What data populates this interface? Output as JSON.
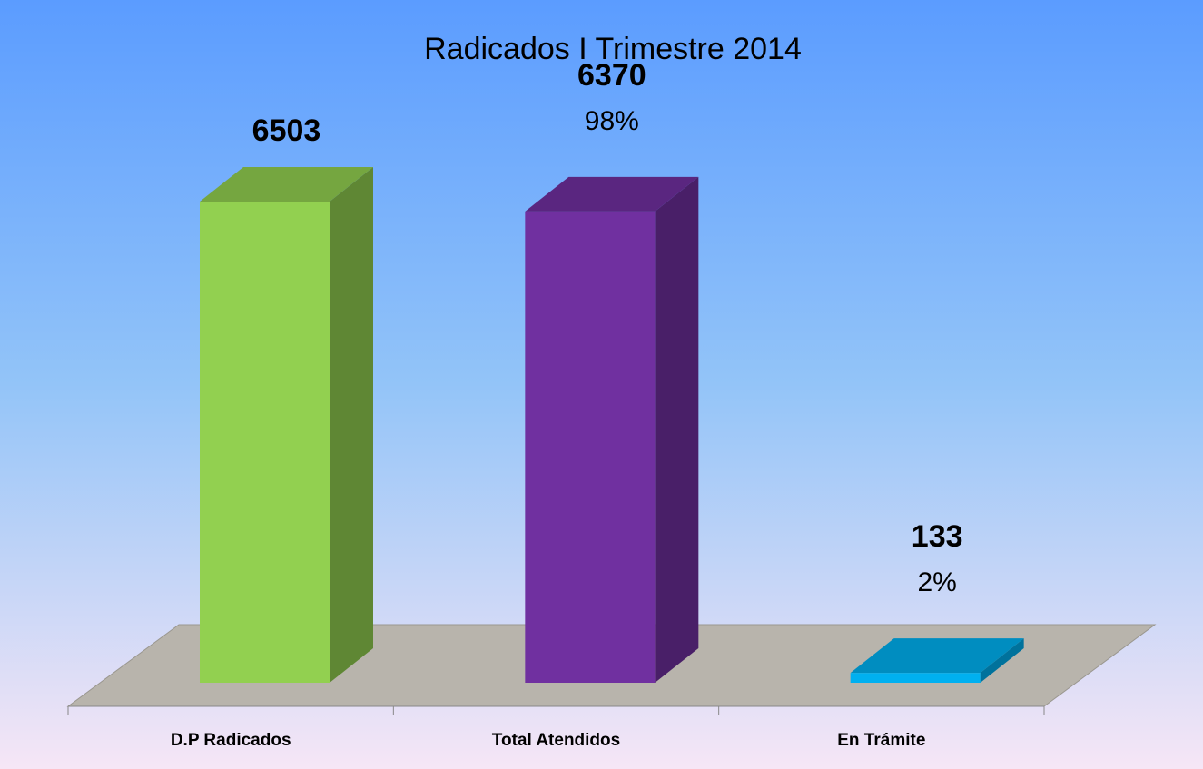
{
  "chart_data": {
    "type": "bar3d",
    "title": "Radicados I Trimestre 2014",
    "categories": [
      "D.P Radicados",
      "Total Atendidos",
      "En Trámite"
    ],
    "values": [
      6503,
      6370,
      133
    ],
    "percent_labels": [
      null,
      "98%",
      "2%"
    ],
    "colors": [
      "#92d050",
      "#7030a0",
      "#00b0f0"
    ]
  }
}
